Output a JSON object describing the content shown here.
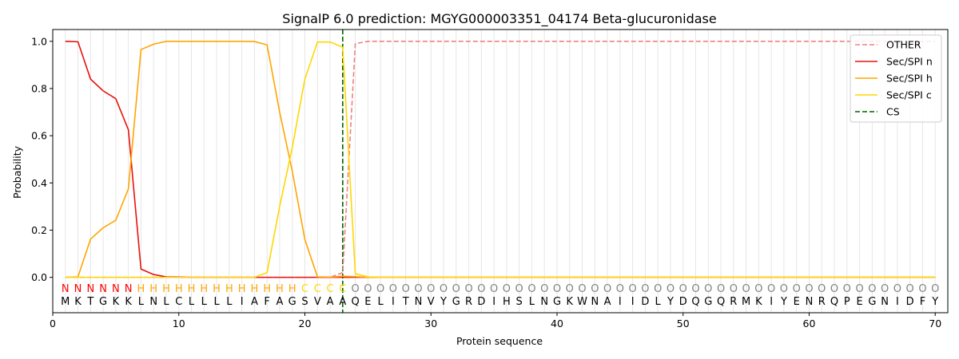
{
  "chart_data": {
    "type": "line",
    "title": "SignalP 6.0 prediction: MGYG000003351_04174 Beta-glucuronidase",
    "xlabel": "Protein sequence",
    "ylabel": "Probability",
    "xlim": [
      0,
      71
    ],
    "ylim": [
      -0.15,
      1.05
    ],
    "xticks": [
      0,
      10,
      20,
      30,
      40,
      50,
      60,
      70
    ],
    "yticks": [
      "0.0",
      "0.2",
      "0.4",
      "0.6",
      "0.8",
      "1.0"
    ],
    "grid": "vertical",
    "legend_position": "top-right",
    "sequence": [
      "M",
      "K",
      "T",
      "G",
      "K",
      "K",
      "L",
      "N",
      "L",
      "C",
      "L",
      "L",
      "L",
      "L",
      "I",
      "A",
      "F",
      "A",
      "G",
      "S",
      "V",
      "A",
      "A",
      "Q",
      "E",
      "L",
      "I",
      "T",
      "N",
      "V",
      "Y",
      "G",
      "R",
      "D",
      "I",
      "H",
      "S",
      "L",
      "N",
      "G",
      "K",
      "W",
      "N",
      "A",
      "I",
      "I",
      "D",
      "L",
      "Y",
      "D",
      "Q",
      "G",
      "Q",
      "R",
      "M",
      "K",
      "I",
      "Y",
      "E",
      "N",
      "R",
      "Q",
      "P",
      "E",
      "G",
      "N",
      "I",
      "D",
      "F",
      "Y"
    ],
    "region_codes": [
      "N",
      "N",
      "N",
      "N",
      "N",
      "N",
      "H",
      "H",
      "H",
      "H",
      "H",
      "H",
      "H",
      "H",
      "H",
      "H",
      "H",
      "H",
      "H",
      "C",
      "C",
      "C",
      "C",
      "O",
      "O",
      "O",
      "O",
      "O",
      "O",
      "O",
      "O",
      "O",
      "O",
      "O",
      "O",
      "O",
      "O",
      "O",
      "O",
      "O",
      "O",
      "O",
      "O",
      "O",
      "O",
      "O",
      "O",
      "O",
      "O",
      "O",
      "O",
      "O",
      "O",
      "O",
      "O",
      "O",
      "O",
      "O",
      "O",
      "O",
      "O",
      "O",
      "O",
      "O",
      "O",
      "O",
      "O",
      "O",
      "O",
      "O"
    ],
    "region_colors": {
      "N": "#ff0000",
      "H": "#ffa500",
      "C": "#ffd700",
      "O": "#808080"
    },
    "series": [
      {
        "name": "OTHER",
        "color": "#f08080",
        "dash": true,
        "values": [
          0,
          0,
          0,
          0,
          0,
          0,
          0,
          0,
          0,
          0,
          0,
          0,
          0,
          0,
          0,
          0,
          0,
          0,
          0,
          0,
          0,
          0,
          0.02,
          0.99,
          1,
          1,
          1,
          1,
          1,
          1,
          1,
          1,
          1,
          1,
          1,
          1,
          1,
          1,
          1,
          1,
          1,
          1,
          1,
          1,
          1,
          1,
          1,
          1,
          1,
          1,
          1,
          1,
          1,
          1,
          1,
          1,
          1,
          1,
          1,
          1,
          1,
          1,
          1,
          1,
          1,
          1,
          1,
          1,
          1,
          1
        ]
      },
      {
        "name": "Sec/SPI n",
        "color": "#e8120c",
        "dash": false,
        "values": [
          1.0,
          0.998,
          0.84,
          0.79,
          0.757,
          0.625,
          0.035,
          0.012,
          0.002,
          0.001,
          0,
          0,
          0,
          0,
          0,
          0,
          0,
          0,
          0,
          0,
          0,
          0,
          0,
          0,
          0,
          0,
          0,
          0,
          0,
          0,
          0,
          0,
          0,
          0,
          0,
          0,
          0,
          0,
          0,
          0,
          0,
          0,
          0,
          0,
          0,
          0,
          0,
          0,
          0,
          0,
          0,
          0,
          0,
          0,
          0,
          0,
          0,
          0,
          0,
          0,
          0,
          0,
          0,
          0,
          0,
          0,
          0,
          0,
          0,
          0
        ]
      },
      {
        "name": "Sec/SPI h",
        "color": "#ffa500",
        "dash": false,
        "values": [
          0,
          0.002,
          0.162,
          0.21,
          0.242,
          0.375,
          0.965,
          0.988,
          1.0,
          1.0,
          1.0,
          1.0,
          1.0,
          1.0,
          1.0,
          0.999,
          0.985,
          0.7,
          0.45,
          0.16,
          0.002,
          0.001,
          0.005,
          0.003,
          0,
          0,
          0,
          0,
          0,
          0,
          0,
          0,
          0,
          0,
          0,
          0,
          0,
          0,
          0,
          0,
          0,
          0,
          0,
          0,
          0,
          0,
          0,
          0,
          0,
          0,
          0,
          0,
          0,
          0,
          0,
          0,
          0,
          0,
          0,
          0,
          0,
          0,
          0,
          0,
          0,
          0,
          0,
          0,
          0,
          0
        ]
      },
      {
        "name": "Sec/SPI c",
        "color": "#ffd700",
        "dash": false,
        "values": [
          0,
          0,
          0,
          0,
          0,
          0,
          0,
          0,
          0,
          0,
          0,
          0,
          0,
          0,
          0,
          0,
          0.02,
          0.3,
          0.55,
          0.84,
          0.997,
          0.997,
          0.975,
          0.015,
          0.002,
          0,
          0,
          0,
          0,
          0,
          0,
          0,
          0,
          0,
          0,
          0,
          0,
          0,
          0,
          0,
          0,
          0,
          0,
          0,
          0,
          0,
          0,
          0,
          0,
          0,
          0,
          0,
          0,
          0,
          0,
          0,
          0,
          0,
          0,
          0,
          0,
          0,
          0,
          0,
          0,
          0,
          0,
          0,
          0,
          0
        ]
      },
      {
        "name": "CS",
        "color": "#006400",
        "dash": true,
        "vline_x": 23
      }
    ]
  }
}
